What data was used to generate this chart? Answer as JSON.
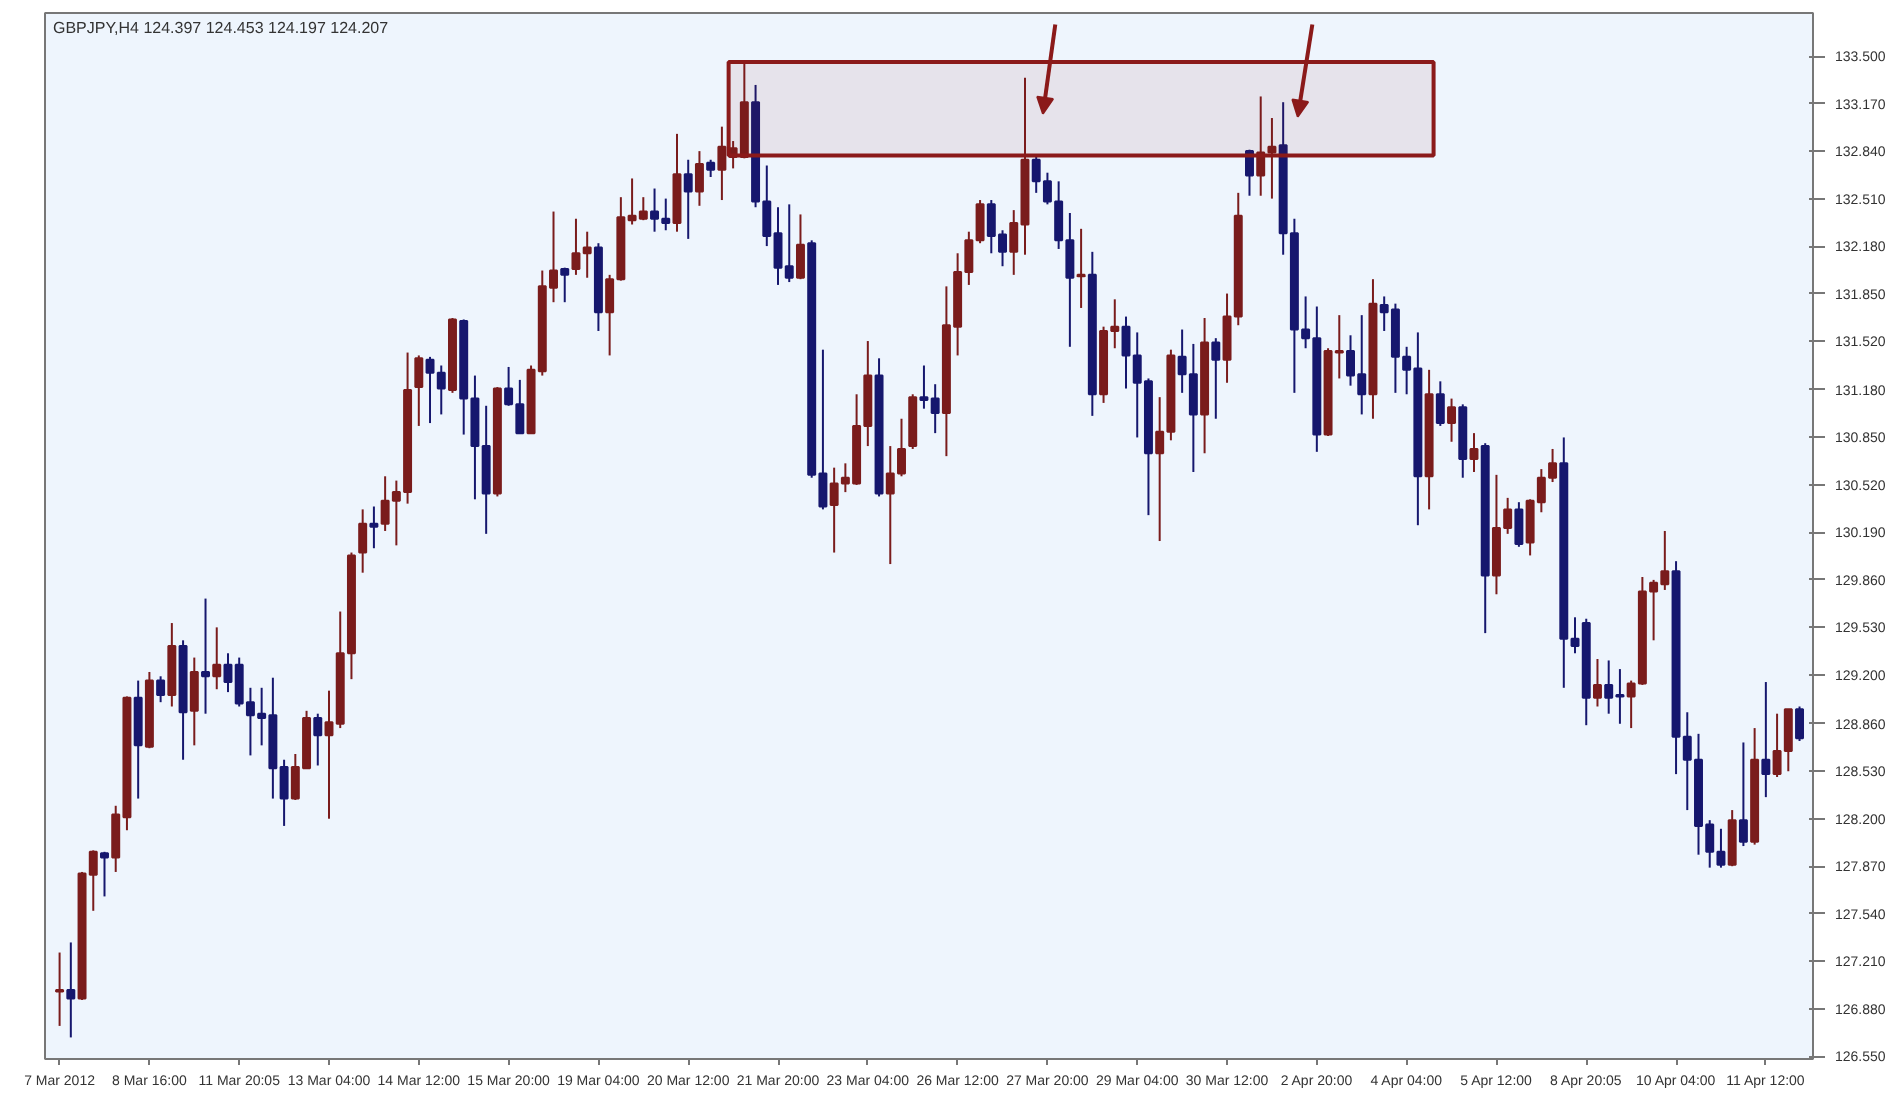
{
  "chart_data": {
    "type": "candlestick",
    "title": "GBPJPY,H4  124.397 124.453 124.197 124.207",
    "categories": [
      "7 Mar 2012",
      null,
      null,
      null,
      null,
      null,
      null,
      null,
      "8 Mar 16:00",
      null,
      null,
      null,
      null,
      null,
      null,
      null,
      "11 Mar 20:05",
      null,
      null,
      null,
      null,
      null,
      null,
      null,
      "13 Mar 04:00",
      null,
      null,
      null,
      null,
      null,
      null,
      null,
      "14 Mar 12:00",
      null,
      null,
      null,
      null,
      null,
      null,
      null,
      "15 Mar 20:00",
      null,
      null,
      null,
      null,
      null,
      null,
      null,
      "19 Mar 04:00",
      null,
      null,
      null,
      null,
      null,
      null,
      null,
      "20 Mar 12:00",
      null,
      null,
      null,
      null,
      null,
      null,
      null,
      "21 Mar 20:00",
      null,
      null,
      null,
      null,
      null,
      null,
      null,
      "23 Mar 04:00",
      null,
      null,
      null,
      null,
      null,
      null,
      null,
      "26 Mar 12:00",
      null,
      null,
      null,
      null,
      null,
      null,
      null,
      "27 Mar 20:00",
      null,
      null,
      null,
      null,
      null,
      null,
      null,
      "29 Mar 04:00",
      null,
      null,
      null,
      null,
      null,
      null,
      null,
      "30 Mar 12:00",
      null,
      null,
      null,
      null,
      null,
      null,
      null,
      "2 Apr 20:00",
      null,
      null,
      null,
      null,
      null,
      null,
      null,
      "4 Apr 04:00",
      null,
      null,
      null,
      null,
      null,
      null,
      null,
      "5 Apr 12:00",
      null,
      null,
      null,
      null,
      null,
      null,
      null,
      "8 Apr 20:05",
      null,
      null,
      null,
      null,
      null,
      null,
      null,
      "10 Apr 04:00",
      null,
      null,
      null,
      null,
      null,
      null,
      null,
      "11 Apr 12:00",
      null,
      null,
      null
    ],
    "ohlc": [
      [
        127.0,
        127.27,
        126.76,
        127.01
      ],
      [
        127.01,
        127.34,
        126.68,
        126.95
      ],
      [
        126.95,
        127.83,
        126.94,
        127.82
      ],
      [
        127.81,
        127.98,
        127.56,
        127.97
      ],
      [
        127.96,
        127.97,
        127.66,
        127.93
      ],
      [
        127.93,
        128.29,
        127.83,
        128.23
      ],
      [
        128.21,
        129.05,
        128.12,
        129.04
      ],
      [
        129.04,
        129.16,
        128.34,
        128.71
      ],
      [
        128.7,
        129.22,
        128.69,
        129.16
      ],
      [
        129.16,
        129.19,
        129.01,
        129.06
      ],
      [
        129.06,
        129.56,
        128.98,
        129.4
      ],
      [
        129.4,
        129.44,
        128.61,
        128.94
      ],
      [
        128.95,
        129.32,
        128.71,
        129.22
      ],
      [
        129.22,
        129.73,
        128.93,
        129.19
      ],
      [
        129.19,
        129.53,
        129.1,
        129.27
      ],
      [
        129.27,
        129.35,
        129.08,
        129.15
      ],
      [
        129.27,
        129.32,
        128.98,
        129.0
      ],
      [
        129.01,
        129.11,
        128.64,
        128.92
      ],
      [
        128.93,
        129.11,
        128.71,
        128.9
      ],
      [
        128.92,
        129.18,
        128.34,
        128.55
      ],
      [
        128.56,
        128.61,
        128.15,
        128.34
      ],
      [
        128.34,
        128.65,
        128.33,
        128.56
      ],
      [
        128.55,
        128.95,
        128.55,
        128.9
      ],
      [
        128.9,
        128.93,
        128.57,
        128.78
      ],
      [
        128.78,
        129.09,
        128.2,
        128.87
      ],
      [
        128.86,
        129.64,
        128.83,
        129.35
      ],
      [
        129.35,
        130.05,
        129.17,
        130.03
      ],
      [
        130.05,
        130.35,
        129.91,
        130.25
      ],
      [
        130.25,
        130.37,
        130.08,
        130.23
      ],
      [
        130.25,
        130.58,
        130.2,
        130.41
      ],
      [
        130.41,
        130.55,
        130.1,
        130.47
      ],
      [
        130.47,
        131.44,
        130.39,
        131.18
      ],
      [
        131.2,
        131.42,
        130.93,
        131.4
      ],
      [
        131.39,
        131.41,
        130.95,
        131.3
      ],
      [
        131.3,
        131.35,
        131.01,
        131.19
      ],
      [
        131.18,
        131.68,
        131.16,
        131.67
      ],
      [
        131.66,
        131.67,
        130.87,
        131.12
      ],
      [
        131.12,
        131.28,
        130.42,
        130.79
      ],
      [
        130.79,
        131.07,
        130.18,
        130.46
      ],
      [
        130.46,
        131.2,
        130.44,
        131.19
      ],
      [
        131.19,
        131.34,
        131.07,
        131.08
      ],
      [
        131.08,
        131.25,
        130.88,
        130.88
      ],
      [
        130.88,
        131.35,
        130.88,
        131.32
      ],
      [
        131.31,
        132.01,
        131.28,
        131.9
      ],
      [
        131.89,
        132.42,
        131.79,
        132.01
      ],
      [
        132.02,
        132.03,
        131.79,
        131.98
      ],
      [
        132.02,
        132.37,
        131.98,
        132.13
      ],
      [
        132.13,
        132.28,
        131.96,
        132.17
      ],
      [
        132.17,
        132.2,
        131.59,
        131.72
      ],
      [
        131.72,
        131.98,
        131.42,
        131.95
      ],
      [
        131.95,
        132.52,
        131.94,
        132.38
      ],
      [
        132.36,
        132.65,
        132.33,
        132.39
      ],
      [
        132.37,
        132.52,
        132.36,
        132.42
      ],
      [
        132.42,
        132.58,
        132.28,
        132.37
      ],
      [
        132.37,
        132.51,
        132.29,
        132.34
      ],
      [
        132.34,
        132.96,
        132.28,
        132.68
      ],
      [
        132.68,
        132.78,
        132.23,
        132.56
      ],
      [
        132.56,
        132.84,
        132.46,
        132.75
      ],
      [
        132.76,
        132.78,
        132.66,
        132.71
      ],
      [
        132.71,
        133.01,
        132.5,
        132.87
      ],
      [
        132.8,
        132.91,
        132.72,
        132.86
      ],
      [
        132.8,
        133.45,
        132.79,
        133.18
      ],
      [
        133.18,
        133.3,
        132.45,
        132.49
      ],
      [
        132.49,
        132.74,
        132.18,
        132.25
      ],
      [
        132.27,
        132.45,
        131.91,
        132.03
      ],
      [
        132.04,
        132.47,
        131.93,
        131.96
      ],
      [
        131.96,
        132.4,
        131.95,
        132.19
      ],
      [
        132.2,
        132.22,
        130.57,
        130.59
      ],
      [
        130.6,
        131.46,
        130.35,
        130.37
      ],
      [
        130.38,
        130.64,
        130.05,
        130.53
      ],
      [
        130.53,
        130.67,
        130.47,
        130.57
      ],
      [
        130.53,
        131.15,
        130.52,
        130.93
      ],
      [
        130.93,
        131.52,
        130.79,
        131.28
      ],
      [
        131.28,
        131.4,
        130.44,
        130.46
      ],
      [
        130.46,
        130.79,
        129.97,
        130.6
      ],
      [
        130.6,
        130.98,
        130.58,
        130.77
      ],
      [
        130.79,
        131.15,
        130.77,
        131.13
      ],
      [
        131.13,
        131.35,
        131.05,
        131.11
      ],
      [
        131.12,
        131.22,
        130.88,
        131.02
      ],
      [
        131.02,
        131.9,
        130.72,
        131.63
      ],
      [
        131.62,
        132.13,
        131.42,
        132.0
      ],
      [
        132.0,
        132.28,
        131.91,
        132.22
      ],
      [
        132.22,
        132.5,
        132.2,
        132.47
      ],
      [
        132.47,
        132.5,
        132.13,
        132.25
      ],
      [
        132.26,
        132.29,
        132.04,
        132.14
      ],
      [
        132.14,
        132.43,
        131.98,
        132.34
      ],
      [
        132.33,
        133.35,
        132.12,
        132.78
      ],
      [
        132.78,
        132.81,
        132.55,
        132.63
      ],
      [
        132.63,
        132.69,
        132.47,
        132.49
      ],
      [
        132.49,
        132.63,
        132.16,
        132.22
      ],
      [
        132.22,
        132.41,
        131.48,
        131.96
      ],
      [
        131.97,
        132.3,
        131.75,
        131.98
      ],
      [
        131.98,
        132.14,
        131.0,
        131.15
      ],
      [
        131.15,
        131.62,
        131.09,
        131.59
      ],
      [
        131.59,
        131.81,
        131.47,
        131.62
      ],
      [
        131.62,
        131.69,
        131.19,
        131.42
      ],
      [
        131.42,
        131.58,
        130.85,
        131.23
      ],
      [
        131.24,
        131.26,
        130.31,
        130.74
      ],
      [
        130.74,
        131.13,
        130.13,
        130.89
      ],
      [
        130.89,
        131.46,
        130.83,
        131.42
      ],
      [
        131.41,
        131.6,
        131.16,
        131.29
      ],
      [
        131.29,
        131.5,
        130.61,
        131.01
      ],
      [
        131.01,
        131.68,
        130.74,
        131.51
      ],
      [
        131.51,
        131.54,
        130.98,
        131.39
      ],
      [
        131.39,
        131.85,
        131.23,
        131.69
      ],
      [
        131.69,
        132.55,
        131.63,
        132.39
      ],
      [
        132.84,
        132.85,
        132.53,
        132.67
      ],
      [
        132.67,
        133.22,
        132.53,
        132.83
      ],
      [
        132.83,
        133.07,
        132.51,
        132.87
      ],
      [
        132.88,
        133.18,
        132.12,
        132.27
      ],
      [
        132.27,
        132.37,
        131.16,
        131.6
      ],
      [
        131.6,
        131.83,
        131.47,
        131.54
      ],
      [
        131.54,
        131.76,
        130.75,
        130.87
      ],
      [
        130.87,
        131.47,
        130.86,
        131.45
      ],
      [
        131.44,
        131.7,
        131.26,
        131.45
      ],
      [
        131.45,
        131.56,
        131.21,
        131.28
      ],
      [
        131.29,
        131.7,
        131.01,
        131.15
      ],
      [
        131.15,
        131.95,
        130.98,
        131.78
      ],
      [
        131.77,
        131.83,
        131.59,
        131.72
      ],
      [
        131.74,
        131.78,
        131.16,
        131.41
      ],
      [
        131.41,
        131.48,
        131.15,
        131.32
      ],
      [
        131.33,
        131.58,
        130.24,
        130.58
      ],
      [
        130.58,
        131.32,
        130.35,
        131.15
      ],
      [
        131.15,
        131.24,
        130.93,
        130.95
      ],
      [
        130.95,
        131.12,
        130.82,
        131.06
      ],
      [
        131.06,
        131.08,
        130.57,
        130.7
      ],
      [
        130.7,
        130.88,
        130.61,
        130.77
      ],
      [
        130.79,
        130.81,
        129.49,
        129.89
      ],
      [
        129.89,
        130.59,
        129.76,
        130.22
      ],
      [
        130.22,
        130.43,
        130.18,
        130.35
      ],
      [
        130.35,
        130.4,
        130.09,
        130.11
      ],
      [
        130.12,
        130.42,
        130.03,
        130.41
      ],
      [
        130.4,
        130.63,
        130.33,
        130.57
      ],
      [
        130.57,
        130.77,
        130.54,
        130.67
      ],
      [
        130.67,
        130.85,
        129.11,
        129.45
      ],
      [
        129.45,
        129.6,
        129.35,
        129.4
      ],
      [
        129.56,
        129.59,
        128.85,
        129.04
      ],
      [
        129.04,
        129.31,
        128.98,
        129.13
      ],
      [
        129.13,
        129.3,
        128.93,
        129.04
      ],
      [
        129.06,
        129.24,
        128.86,
        129.05
      ],
      [
        129.05,
        129.16,
        128.83,
        129.14
      ],
      [
        129.14,
        129.88,
        129.13,
        129.78
      ],
      [
        129.78,
        129.86,
        129.44,
        129.84
      ],
      [
        129.83,
        130.2,
        129.79,
        129.92
      ],
      [
        129.92,
        129.99,
        128.51,
        128.77
      ],
      [
        128.77,
        128.94,
        128.26,
        128.61
      ],
      [
        128.61,
        128.79,
        127.95,
        128.15
      ],
      [
        128.16,
        128.19,
        127.86,
        127.97
      ],
      [
        127.97,
        128.13,
        127.86,
        127.88
      ],
      [
        127.88,
        128.26,
        127.87,
        128.19
      ],
      [
        128.19,
        128.73,
        128.01,
        128.04
      ],
      [
        128.04,
        128.83,
        128.02,
        128.61
      ],
      [
        128.61,
        129.15,
        128.35,
        128.51
      ],
      [
        128.51,
        128.93,
        128.49,
        128.67
      ],
      [
        128.67,
        128.96,
        128.53,
        128.96
      ],
      [
        128.96,
        128.98,
        128.74,
        128.76
      ]
    ],
    "colors": [
      "#7a1c1c",
      "#16176e",
      "#7a1c1c",
      "#7a1c1c",
      "#16176e",
      "#7a1c1c",
      "#7a1c1c",
      "#16176e",
      "#7a1c1c",
      "#16176e",
      "#7a1c1c",
      "#16176e",
      "#7a1c1c",
      "#16176e",
      "#7a1c1c",
      "#16176e",
      "#16176e",
      "#16176e",
      "#16176e",
      "#16176e",
      "#16176e",
      "#7a1c1c",
      "#7a1c1c",
      "#16176e",
      "#7a1c1c",
      "#7a1c1c",
      "#7a1c1c",
      "#7a1c1c",
      "#16176e",
      "#7a1c1c",
      "#7a1c1c",
      "#7a1c1c",
      "#7a1c1c",
      "#16176e",
      "#16176e",
      "#7a1c1c",
      "#16176e",
      "#16176e",
      "#16176e",
      "#7a1c1c",
      "#16176e",
      "#16176e",
      "#7a1c1c",
      "#7a1c1c",
      "#7a1c1c",
      "#16176e",
      "#7a1c1c",
      "#7a1c1c",
      "#16176e",
      "#7a1c1c",
      "#7a1c1c",
      "#7a1c1c",
      "#7a1c1c",
      "#16176e",
      "#16176e",
      "#7a1c1c",
      "#16176e",
      "#7a1c1c",
      "#16176e",
      "#7a1c1c",
      "#7a1c1c",
      "#7a1c1c",
      "#16176e",
      "#16176e",
      "#16176e",
      "#16176e",
      "#7a1c1c",
      "#16176e",
      "#16176e",
      "#7a1c1c",
      "#7a1c1c",
      "#7a1c1c",
      "#7a1c1c",
      "#16176e",
      "#7a1c1c",
      "#7a1c1c",
      "#7a1c1c",
      "#16176e",
      "#16176e",
      "#7a1c1c",
      "#7a1c1c",
      "#7a1c1c",
      "#7a1c1c",
      "#16176e",
      "#16176e",
      "#7a1c1c",
      "#7a1c1c",
      "#16176e",
      "#16176e",
      "#16176e",
      "#16176e",
      "#7a1c1c",
      "#16176e",
      "#7a1c1c",
      "#7a1c1c",
      "#16176e",
      "#16176e",
      "#16176e",
      "#7a1c1c",
      "#7a1c1c",
      "#16176e",
      "#16176e",
      "#7a1c1c",
      "#16176e",
      "#7a1c1c",
      "#7a1c1c",
      "#16176e",
      "#7a1c1c",
      "#7a1c1c",
      "#16176e",
      "#16176e",
      "#16176e",
      "#16176e",
      "#7a1c1c",
      "#7a1c1c",
      "#16176e",
      "#16176e",
      "#7a1c1c",
      "#16176e",
      "#16176e",
      "#16176e",
      "#16176e",
      "#7a1c1c",
      "#16176e",
      "#7a1c1c",
      "#16176e",
      "#7a1c1c",
      "#16176e",
      "#7a1c1c",
      "#7a1c1c",
      "#16176e",
      "#7a1c1c",
      "#7a1c1c",
      "#7a1c1c",
      "#16176e",
      "#16176e",
      "#16176e",
      "#7a1c1c",
      "#16176e",
      "#16176e",
      "#7a1c1c",
      "#7a1c1c",
      "#7a1c1c",
      "#7a1c1c",
      "#16176e",
      "#16176e",
      "#16176e",
      "#16176e",
      "#16176e",
      "#7a1c1c",
      "#16176e",
      "#7a1c1c",
      "#16176e",
      "#7a1c1c",
      "#7a1c1c",
      "#16176e"
    ],
    "ylim": [
      126.53,
      133.8
    ],
    "yticks": [
      {
        "value": 133.5,
        "label": "133.500"
      },
      {
        "value": 133.17,
        "label": "133.170"
      },
      {
        "value": 132.84,
        "label": "132.840"
      },
      {
        "value": 132.51,
        "label": "132.510"
      },
      {
        "value": 132.18,
        "label": "132.180"
      },
      {
        "value": 131.85,
        "label": "131.850"
      },
      {
        "value": 131.52,
        "label": "131.520"
      },
      {
        "value": 131.18,
        "label": "131.180"
      },
      {
        "value": 130.85,
        "label": "130.850"
      },
      {
        "value": 130.52,
        "label": "130.520"
      },
      {
        "value": 130.19,
        "label": "130.190"
      },
      {
        "value": 129.86,
        "label": "129.860"
      },
      {
        "value": 129.53,
        "label": "129.530"
      },
      {
        "value": 129.2,
        "label": "129.200"
      },
      {
        "value": 128.86,
        "label": "128.860"
      },
      {
        "value": 128.53,
        "label": "128.530"
      },
      {
        "value": 128.2,
        "label": "128.200"
      },
      {
        "value": 127.87,
        "label": "127.870"
      },
      {
        "value": 127.54,
        "label": "127.540"
      },
      {
        "value": 127.21,
        "label": "127.210"
      },
      {
        "value": 126.88,
        "label": "126.880"
      },
      {
        "value": 126.55,
        "label": "126.550"
      }
    ],
    "bands": [
      {
        "axis": "y",
        "from": 132.81,
        "to": 133.46,
        "color": "#8b1a1a"
      }
    ]
  }
}
